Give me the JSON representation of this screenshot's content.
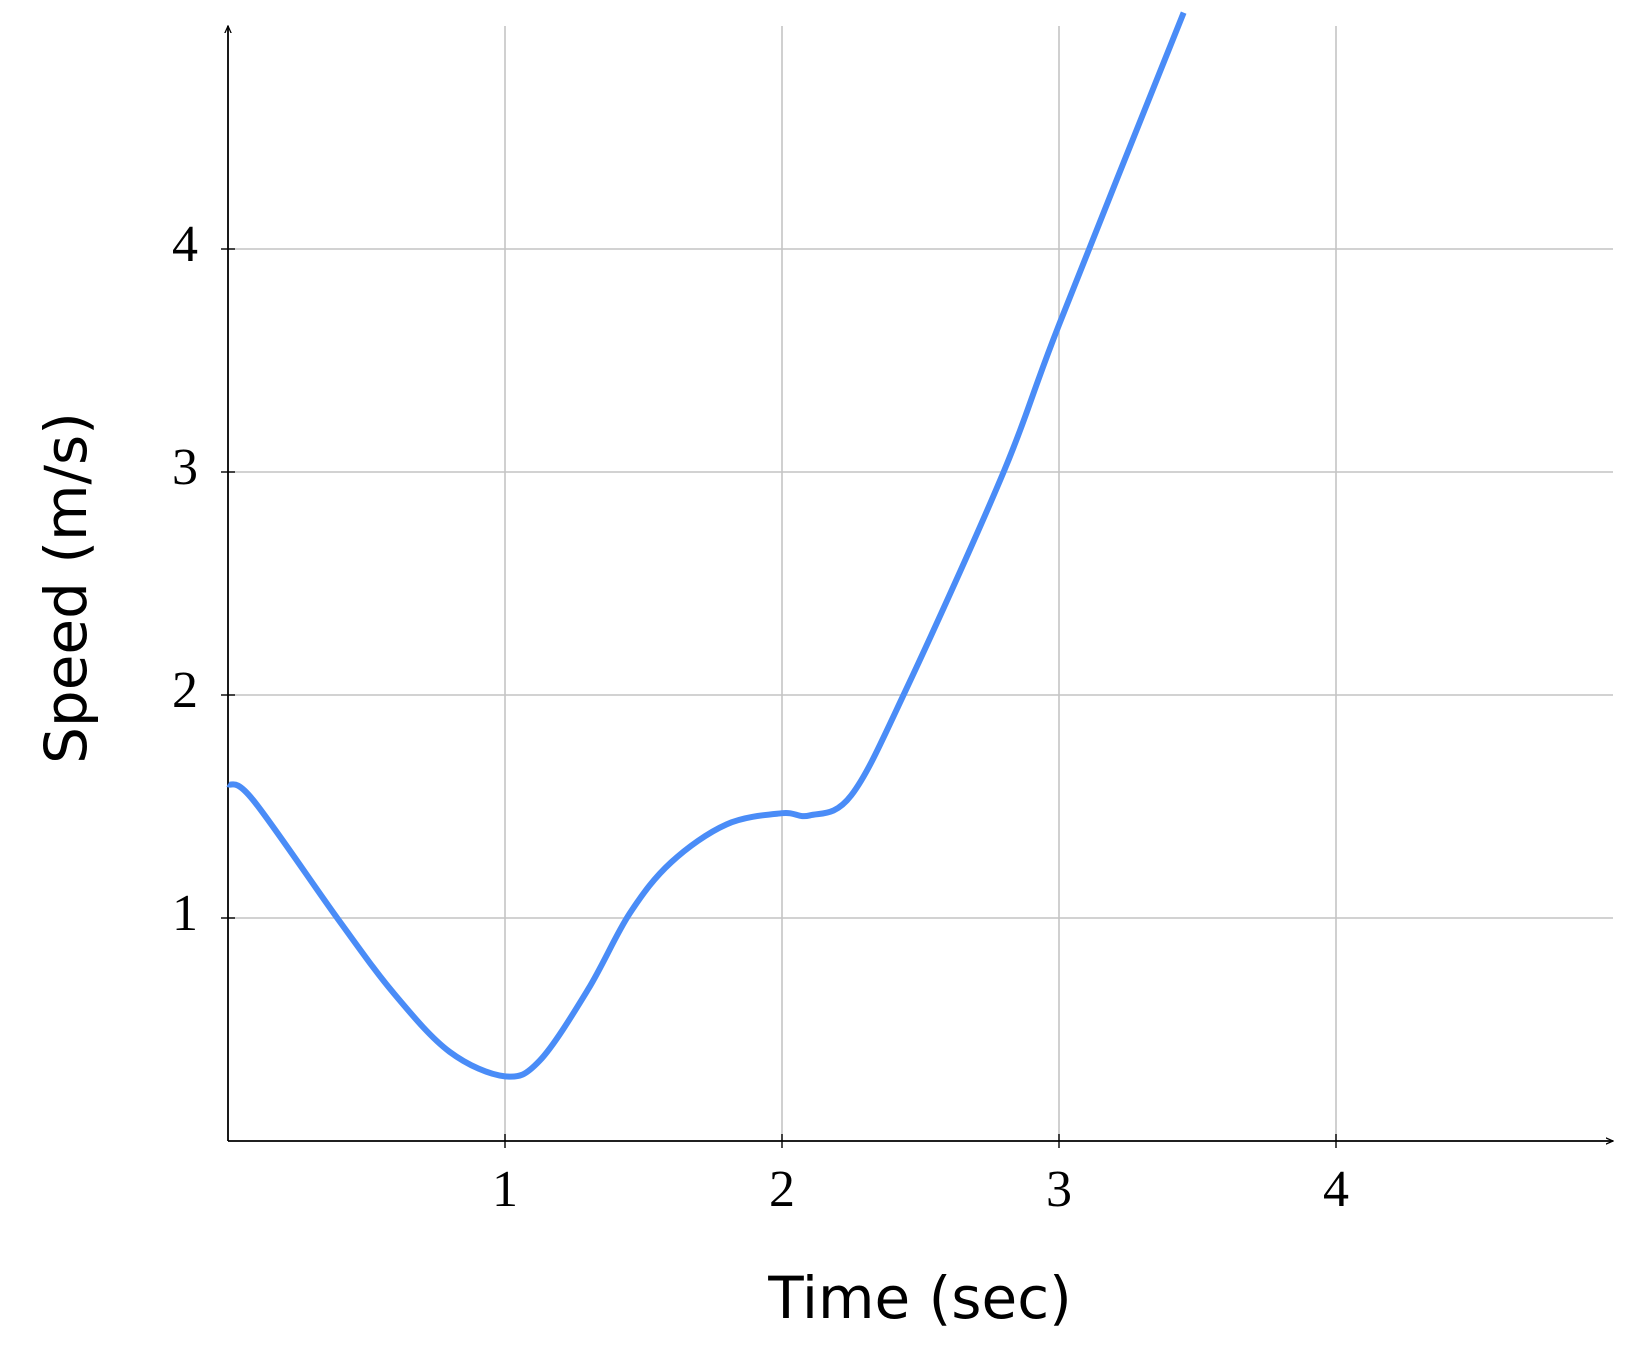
{
  "chart_data": {
    "type": "line",
    "x_label": "Time (sec)",
    "y_label": "Speed (m/s)",
    "x": [
      0,
      0.09,
      0.4,
      0.6,
      0.8,
      1.0,
      1.125,
      1.3,
      1.45,
      1.6,
      1.8,
      2.0,
      2.1,
      2.25,
      2.45,
      2.8,
      3.0,
      3.45
    ],
    "series": [
      {
        "name": "Speed",
        "color": "#4a8cf7",
        "values": [
          1.6,
          1.53,
          0.99,
          0.66,
          0.4,
          0.29,
          0.36,
          0.68,
          1.02,
          1.25,
          1.42,
          1.47,
          1.46,
          1.55,
          2.03,
          3.0,
          3.66,
          5.06
        ]
      }
    ],
    "xlim": [
      0,
      5
    ],
    "ylim": [
      0,
      5
    ],
    "xticks": [
      1,
      2,
      3,
      4
    ],
    "yticks": [
      1,
      2,
      3,
      4
    ],
    "grid": true
  }
}
